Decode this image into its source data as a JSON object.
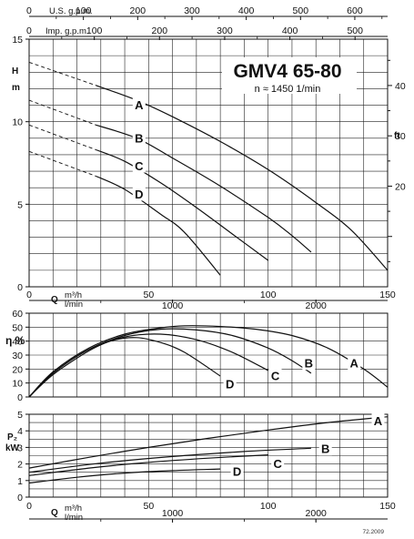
{
  "chart_data": [
    {
      "type": "line",
      "panel": "head",
      "title": "GMV4 65-80",
      "subtitle": "n ≈ 1450 1/min",
      "x_axes": {
        "usgpm": {
          "label": "U.S. g.p.m.",
          "zero": "0",
          "ticks": [
            "100",
            "200",
            "300",
            "400",
            "500",
            "600"
          ]
        },
        "impgpm": {
          "label": "Imp. g.p.m.",
          "zero": "0",
          "ticks": [
            "100",
            "200",
            "300",
            "400",
            "500"
          ]
        },
        "q": {
          "label": "Q",
          "unit": "m³/h",
          "ticks": [
            "0",
            "50",
            "100",
            "150"
          ]
        },
        "lmin": {
          "unit": "l/min",
          "ticks": [
            "1000",
            "2000"
          ]
        }
      },
      "ylabel": "H",
      "yunit": "m",
      "y2label": "ft",
      "yticks": [
        "0",
        "5",
        "10",
        "15"
      ],
      "y2ticks": [
        "20",
        "30",
        "40"
      ],
      "xlim": [
        0,
        150
      ],
      "ylim": [
        0,
        15
      ],
      "grid": true,
      "series": [
        {
          "name": "A",
          "x": [
            28,
            45,
            60,
            80,
            100,
            120,
            135,
            150
          ],
          "y": [
            12.2,
            11.3,
            10.3,
            8.8,
            7.1,
            5.1,
            3.4,
            1.0
          ]
        },
        {
          "name": "B",
          "x": [
            28,
            45,
            60,
            80,
            100,
            110,
            118
          ],
          "y": [
            9.8,
            9.0,
            7.8,
            6.1,
            4.2,
            3.1,
            2.1
          ]
        },
        {
          "name": "C",
          "x": [
            28,
            40,
            55,
            70,
            85,
            100
          ],
          "y": [
            8.3,
            7.6,
            6.3,
            4.8,
            3.2,
            1.6
          ]
        },
        {
          "name": "D",
          "x": [
            28,
            40,
            55,
            65,
            80
          ],
          "y": [
            6.7,
            5.9,
            4.4,
            3.3,
            0.7
          ]
        }
      ],
      "extensions": [
        {
          "name": "A",
          "x": [
            0,
            28
          ],
          "y": [
            13.6,
            12.2
          ]
        },
        {
          "name": "B",
          "x": [
            0,
            28
          ],
          "y": [
            11.3,
            9.8
          ]
        },
        {
          "name": "C",
          "x": [
            0,
            28
          ],
          "y": [
            9.8,
            8.3
          ]
        },
        {
          "name": "D",
          "x": [
            0,
            28
          ],
          "y": [
            8.2,
            6.7
          ]
        }
      ],
      "curve_labels": [
        {
          "text": "A",
          "x": 46,
          "y": 11.0
        },
        {
          "text": "B",
          "x": 46,
          "y": 9.0
        },
        {
          "text": "C",
          "x": 46,
          "y": 7.3
        },
        {
          "text": "D",
          "x": 46,
          "y": 5.6
        }
      ]
    },
    {
      "type": "line",
      "panel": "efficiency",
      "ylabel": "η %",
      "yticks": [
        "0",
        "10",
        "20",
        "30",
        "40",
        "50",
        "60"
      ],
      "xticks": [
        "0",
        "50",
        "100",
        "150"
      ],
      "xlim": [
        0,
        150
      ],
      "ylim": [
        0,
        60
      ],
      "grid": true,
      "series": [
        {
          "name": "A",
          "x": [
            0,
            10,
            25,
            40,
            55,
            65,
            80,
            95,
            110,
            125,
            140,
            150
          ],
          "y": [
            0,
            18,
            35,
            45,
            49.5,
            51,
            50.5,
            48.5,
            44,
            35,
            20,
            7
          ]
        },
        {
          "name": "B",
          "x": [
            0,
            10,
            25,
            40,
            55,
            70,
            85,
            100,
            110,
            118
          ],
          "y": [
            0,
            17,
            34,
            44,
            48.5,
            48,
            44,
            35,
            26,
            17
          ]
        },
        {
          "name": "C",
          "x": [
            0,
            10,
            25,
            40,
            55,
            70,
            85,
            100
          ],
          "y": [
            0,
            17,
            34,
            43,
            45,
            41,
            32,
            19
          ]
        },
        {
          "name": "D",
          "x": [
            0,
            10,
            25,
            35,
            45,
            55,
            65,
            80
          ],
          "y": [
            0,
            16,
            33,
            40.5,
            42.5,
            39,
            32,
            15
          ]
        }
      ],
      "curve_labels": [
        {
          "text": "A",
          "x": 136,
          "y": 24
        },
        {
          "text": "B",
          "x": 117,
          "y": 24
        },
        {
          "text": "C",
          "x": 103,
          "y": 15
        },
        {
          "text": "D",
          "x": 84,
          "y": 9
        }
      ]
    },
    {
      "type": "line",
      "panel": "power",
      "ylabel": "P₂",
      "yunit": "kW",
      "yticks": [
        "0",
        "1",
        "2",
        "3",
        "4",
        "5"
      ],
      "x_axes": {
        "q": {
          "label": "Q",
          "unit": "m³/h",
          "ticks": [
            "0",
            "50",
            "100",
            "150"
          ]
        },
        "lmin": {
          "unit": "l/min",
          "ticks": [
            "1000",
            "2000"
          ]
        }
      },
      "xlim": [
        0,
        150
      ],
      "ylim": [
        0,
        5
      ],
      "grid": true,
      "series": [
        {
          "name": "A",
          "x": [
            0,
            25,
            50,
            75,
            100,
            125,
            150
          ],
          "y": [
            1.75,
            2.4,
            3.0,
            3.55,
            4.05,
            4.5,
            4.85
          ]
        },
        {
          "name": "B",
          "x": [
            0,
            30,
            60,
            90,
            118
          ],
          "y": [
            1.5,
            2.05,
            2.45,
            2.75,
            2.95
          ]
        },
        {
          "name": "C",
          "x": [
            0,
            25,
            50,
            75,
            100
          ],
          "y": [
            1.3,
            1.75,
            2.1,
            2.35,
            2.55
          ]
        },
        {
          "name": "D",
          "x": [
            0,
            20,
            40,
            60,
            80
          ],
          "y": [
            0.85,
            1.2,
            1.45,
            1.6,
            1.7
          ]
        }
      ],
      "curve_labels": [
        {
          "text": "A",
          "x": 146,
          "y": 4.6
        },
        {
          "text": "B",
          "x": 124,
          "y": 2.9
        },
        {
          "text": "C",
          "x": 104,
          "y": 2.0
        },
        {
          "text": "D",
          "x": 87,
          "y": 1.55
        }
      ]
    }
  ],
  "footer_code": "72.2009"
}
